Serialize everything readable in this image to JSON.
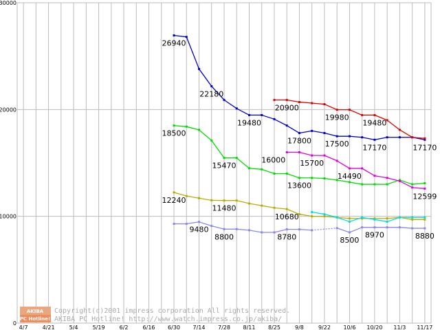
{
  "chart_data": {
    "type": "line",
    "title": "",
    "xlabel": "",
    "ylabel": "",
    "ylim": [
      0,
      30000
    ],
    "yticks": [
      0,
      10000,
      20000,
      30000
    ],
    "ytick_labels": [
      "0",
      "10000",
      "20000",
      "30000"
    ],
    "x_count": 33,
    "xtick_positions": [
      0,
      2,
      4,
      6,
      8,
      10,
      12,
      14,
      16,
      18,
      20,
      22,
      24,
      26,
      28,
      30,
      32
    ],
    "xtick_labels": [
      "4/7",
      "4/21",
      "5/4",
      "5/19",
      "6/2",
      "6/16",
      "6/30",
      "7/14",
      "7/28",
      "8/11",
      "8/25",
      "9/8",
      "9/22",
      "10/6",
      "10/20",
      "11/3",
      "11/17"
    ],
    "grid": true,
    "series": [
      {
        "color": "#0000cc",
        "points": [
          [
            12,
            26940
          ],
          [
            13,
            26800
          ],
          [
            14,
            23800
          ],
          [
            15,
            22180
          ],
          [
            16,
            20900
          ],
          [
            17,
            20100
          ],
          [
            18,
            19480
          ],
          [
            19,
            19480
          ],
          [
            20,
            19100
          ],
          [
            21,
            18500
          ],
          [
            22,
            17800
          ],
          [
            23,
            18000
          ],
          [
            24,
            17800
          ],
          [
            25,
            17500
          ],
          [
            26,
            17500
          ],
          [
            27,
            17400
          ],
          [
            28,
            17170
          ],
          [
            29,
            17400
          ],
          [
            30,
            17400
          ],
          [
            31,
            17400
          ],
          [
            32,
            17170
          ]
        ]
      },
      {
        "color": "#dd0000",
        "points": [
          [
            20,
            20900
          ],
          [
            21,
            20900
          ],
          [
            22,
            20700
          ],
          [
            23,
            20600
          ],
          [
            24,
            20500
          ],
          [
            25,
            19980
          ],
          [
            26,
            19980
          ],
          [
            27,
            19480
          ],
          [
            28,
            19480
          ],
          [
            29,
            19000
          ],
          [
            30,
            18100
          ],
          [
            31,
            17400
          ],
          [
            32,
            17300
          ]
        ]
      },
      {
        "color": "#00dd00",
        "points": [
          [
            12,
            18500
          ],
          [
            13,
            18400
          ],
          [
            14,
            18100
          ],
          [
            15,
            17100
          ],
          [
            16,
            15470
          ],
          [
            17,
            15470
          ],
          [
            18,
            14500
          ],
          [
            19,
            14400
          ],
          [
            20,
            14000
          ],
          [
            21,
            14000
          ],
          [
            22,
            13600
          ],
          [
            23,
            13600
          ],
          [
            24,
            13550
          ],
          [
            25,
            13400
          ],
          [
            26,
            13200
          ],
          [
            27,
            13000
          ],
          [
            28,
            13000
          ],
          [
            29,
            13000
          ],
          [
            30,
            13400
          ],
          [
            31,
            13000
          ],
          [
            32,
            13100
          ]
        ]
      },
      {
        "color": "#dd00dd",
        "points": [
          [
            21,
            16000
          ],
          [
            22,
            16000
          ],
          [
            23,
            15700
          ],
          [
            24,
            15700
          ],
          [
            25,
            15200
          ],
          [
            26,
            14490
          ],
          [
            27,
            14490
          ],
          [
            28,
            13800
          ],
          [
            29,
            13600
          ],
          [
            30,
            13300
          ],
          [
            31,
            12700
          ],
          [
            32,
            12599
          ]
        ]
      },
      {
        "color": "#bbaa00",
        "points": [
          [
            12,
            12240
          ],
          [
            13,
            11900
          ],
          [
            14,
            11700
          ],
          [
            15,
            11500
          ],
          [
            16,
            11480
          ],
          [
            17,
            11480
          ],
          [
            18,
            11200
          ],
          [
            19,
            11000
          ],
          [
            20,
            10800
          ],
          [
            21,
            10680
          ],
          [
            22,
            10200
          ],
          [
            23,
            10000
          ],
          [
            24,
            10000
          ],
          [
            25,
            9900
          ],
          [
            26,
            9800
          ],
          [
            27,
            9800
          ],
          [
            28,
            9800
          ],
          [
            29,
            9800
          ],
          [
            30,
            9900
          ],
          [
            31,
            9700
          ],
          [
            32,
            9700
          ]
        ]
      },
      {
        "color": "#00dddd",
        "points": [
          [
            23,
            10400
          ],
          [
            24,
            10200
          ],
          [
            25,
            9900
          ],
          [
            26,
            9500
          ],
          [
            27,
            9900
          ],
          [
            28,
            9700
          ],
          [
            29,
            9500
          ],
          [
            30,
            9900
          ],
          [
            31,
            9900
          ],
          [
            32,
            9900
          ]
        ]
      },
      {
        "color": "#8888ee",
        "points": [
          [
            12,
            9300
          ],
          [
            13,
            9300
          ],
          [
            14,
            9480
          ],
          [
            15,
            9100
          ],
          [
            16,
            8800
          ],
          [
            17,
            8800
          ],
          [
            18,
            8700
          ],
          [
            19,
            8500
          ],
          [
            20,
            8500
          ],
          [
            21,
            8780
          ],
          [
            22,
            8780
          ],
          [
            23,
            8700
          ],
          [
            25,
            8900
          ],
          [
            26,
            8500
          ],
          [
            27,
            8970
          ],
          [
            28,
            8970
          ],
          [
            29,
            8970
          ],
          [
            30,
            8970
          ],
          [
            31,
            8880
          ],
          [
            32,
            8880
          ]
        ]
      }
    ],
    "labels": [
      {
        "text": "26940",
        "x": 12,
        "y": 26940,
        "pos": "below"
      },
      {
        "text": "22180",
        "x": 15,
        "y": 22180,
        "pos": "below"
      },
      {
        "text": "19480",
        "x": 18,
        "y": 19480,
        "pos": "below"
      },
      {
        "text": "17800",
        "x": 22,
        "y": 17800,
        "pos": "below"
      },
      {
        "text": "17500",
        "x": 25,
        "y": 17500,
        "pos": "below"
      },
      {
        "text": "17170",
        "x": 28,
        "y": 17170,
        "pos": "below"
      },
      {
        "text": "17170",
        "x": 32,
        "y": 17170,
        "pos": "below"
      },
      {
        "text": "20900",
        "x": 21,
        "y": 20900,
        "pos": "below"
      },
      {
        "text": "19980",
        "x": 25,
        "y": 19980,
        "pos": "below"
      },
      {
        "text": "19480",
        "x": 28,
        "y": 19480,
        "pos": "below"
      },
      {
        "text": "18500",
        "x": 12,
        "y": 18500,
        "pos": "below"
      },
      {
        "text": "15470",
        "x": 16,
        "y": 15470,
        "pos": "below"
      },
      {
        "text": "13600",
        "x": 22,
        "y": 13600,
        "pos": "below"
      },
      {
        "text": "16000",
        "x": 21,
        "y": 16000,
        "pos": "below-left"
      },
      {
        "text": "15700",
        "x": 23,
        "y": 15700,
        "pos": "below"
      },
      {
        "text": "14490",
        "x": 26,
        "y": 14490,
        "pos": "below"
      },
      {
        "text": "12599",
        "x": 32,
        "y": 12599,
        "pos": "below"
      },
      {
        "text": "12240",
        "x": 12,
        "y": 12240,
        "pos": "below"
      },
      {
        "text": "11480",
        "x": 16,
        "y": 11480,
        "pos": "below"
      },
      {
        "text": "10680",
        "x": 21,
        "y": 10680,
        "pos": "below"
      },
      {
        "text": "9480",
        "x": 14,
        "y": 9480,
        "pos": "below"
      },
      {
        "text": "8800",
        "x": 16,
        "y": 8800,
        "pos": "below"
      },
      {
        "text": "8780",
        "x": 21,
        "y": 8780,
        "pos": "below"
      },
      {
        "text": "8500",
        "x": 26,
        "y": 8500,
        "pos": "below"
      },
      {
        "text": "8970",
        "x": 28,
        "y": 8970,
        "pos": "below"
      },
      {
        "text": "8880",
        "x": 32,
        "y": 8880,
        "pos": "below"
      }
    ],
    "background": "#ffffff",
    "grid_color": "#bbbbbb"
  },
  "credit": {
    "logo_top": "AKIBA",
    "logo_bottom": "PC Hotline!",
    "line1": "Copyright(c)2001 impress corporation All rights reserved.",
    "line2": "AKIBA PC Hotline!  http://www.watch.impress.co.jp/akiba/"
  }
}
